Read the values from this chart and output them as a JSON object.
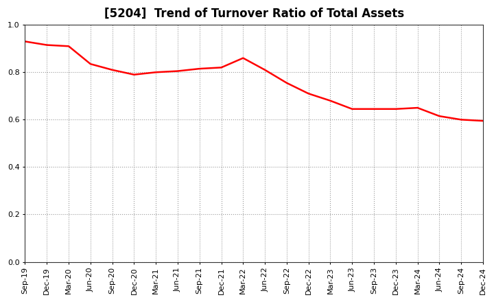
{
  "title": "[5204]  Trend of Turnover Ratio of Total Assets",
  "line_color": "#FF0000",
  "background_color": "#FFFFFF",
  "grid_color": "#999999",
  "ylim": [
    0.0,
    1.0
  ],
  "yticks": [
    0.0,
    0.2,
    0.4,
    0.6,
    0.8,
    1.0
  ],
  "x_labels": [
    "Sep-19",
    "Dec-19",
    "Mar-20",
    "Jun-20",
    "Sep-20",
    "Dec-20",
    "Mar-21",
    "Jun-21",
    "Sep-21",
    "Dec-21",
    "Mar-22",
    "Jun-22",
    "Sep-22",
    "Dec-22",
    "Mar-23",
    "Jun-23",
    "Sep-23",
    "Dec-23",
    "Mar-24",
    "Jun-24",
    "Sep-24",
    "Dec-24"
  ],
  "y_values": [
    0.93,
    0.915,
    0.91,
    0.835,
    0.81,
    0.79,
    0.8,
    0.805,
    0.815,
    0.82,
    0.86,
    0.81,
    0.755,
    0.71,
    0.68,
    0.645,
    0.645,
    0.645,
    0.65,
    0.615,
    0.6,
    0.595
  ],
  "title_fontsize": 12,
  "tick_fontsize": 8,
  "line_width": 1.8
}
